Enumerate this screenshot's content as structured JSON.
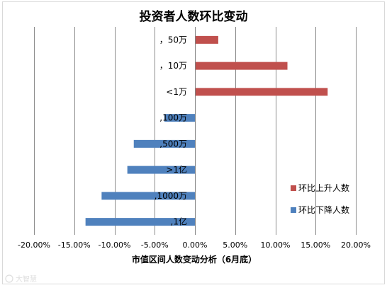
{
  "chart_data": {
    "type": "bar",
    "orientation": "horizontal",
    "title": "投资者人数环比变动",
    "xlabel": "市值区间人数变动分析（6月底）",
    "ylabel": "",
    "xlim": [
      -0.2,
      0.2
    ],
    "x_ticks": [
      -0.2,
      -0.15,
      -0.1,
      -0.05,
      0.0,
      0.05,
      0.1,
      0.15,
      0.2
    ],
    "x_tick_labels": [
      "-20.00%",
      "-15.00%",
      "-10.00%",
      "-5.00%",
      "0.00%",
      "5.00%",
      "10.00%",
      "15.00%",
      "20.00%"
    ],
    "grid": "vertical",
    "legend_position": "right",
    "categories": [
      "，50万",
      "，10万",
      "<1万",
      ",100万",
      ",500万",
      ">1亿",
      ",1000万",
      ",1亿"
    ],
    "values": [
      0.029,
      0.115,
      0.165,
      -0.038,
      -0.076,
      -0.084,
      -0.116,
      -0.136
    ],
    "series": [
      {
        "name": "环比上升人数",
        "color": "#C0504D"
      },
      {
        "name": "环比下降人数",
        "color": "#4F81BD"
      }
    ]
  },
  "watermark": "大智慧"
}
